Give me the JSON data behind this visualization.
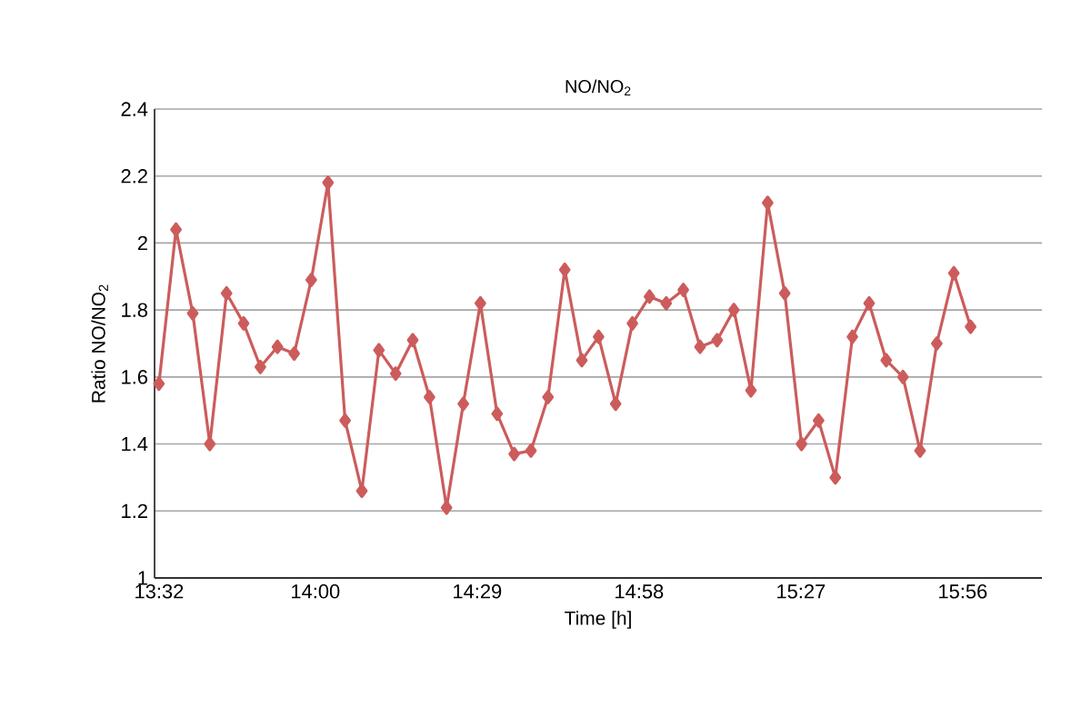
{
  "chart_data": {
    "type": "line",
    "title": "NO/NO$_{2}$",
    "xlabel": "Time [h]",
    "ylabel": "Ratio NO/NO$_{2}$",
    "x": [
      13.533,
      13.584,
      13.634,
      13.685,
      13.735,
      13.786,
      13.836,
      13.887,
      13.937,
      13.988,
      14.038,
      14.089,
      14.139,
      14.19,
      14.24,
      14.291,
      14.341,
      14.392,
      14.442,
      14.493,
      14.543,
      14.594,
      14.644,
      14.695,
      14.745,
      14.796,
      14.846,
      14.897,
      14.947,
      14.998,
      15.048,
      15.099,
      15.149,
      15.2,
      15.25,
      15.301,
      15.351,
      15.402,
      15.452,
      15.503,
      15.553,
      15.604,
      15.654,
      15.705,
      15.755,
      15.806,
      15.856,
      15.907,
      15.957
    ],
    "series": [
      {
        "color": "#cc5c5c",
        "values": [
          1.58,
          2.04,
          1.79,
          1.4,
          1.85,
          1.76,
          1.63,
          1.69,
          1.67,
          1.89,
          2.18,
          1.47,
          1.26,
          1.68,
          1.61,
          1.71,
          1.54,
          1.21,
          1.52,
          1.82,
          1.49,
          1.37,
          1.38,
          1.54,
          1.92,
          1.65,
          1.72,
          1.52,
          1.76,
          1.84,
          1.82,
          1.86,
          1.69,
          1.71,
          1.8,
          1.56,
          2.12,
          1.85,
          1.4,
          1.47,
          1.3,
          1.72,
          1.82,
          1.65,
          1.6,
          1.38,
          1.7,
          1.91,
          1.75
        ]
      }
    ],
    "xlim": [
      13.52,
      16.17
    ],
    "xticks": [
      {
        "value": 13.5333,
        "label": "13:32"
      },
      {
        "value": 14.0,
        "label": "14:00"
      },
      {
        "value": 14.4833,
        "label": "14:29"
      },
      {
        "value": 14.9667,
        "label": "14:58"
      },
      {
        "value": 15.45,
        "label": "15:27"
      },
      {
        "value": 15.9333,
        "label": "15:56"
      }
    ],
    "ylim": [
      1,
      2.4
    ],
    "yticks": [
      1,
      1.2,
      1.4,
      1.6,
      1.8,
      2,
      2.2,
      2.4
    ],
    "grid": "y",
    "marker": "diamond",
    "line_style": "solid"
  }
}
